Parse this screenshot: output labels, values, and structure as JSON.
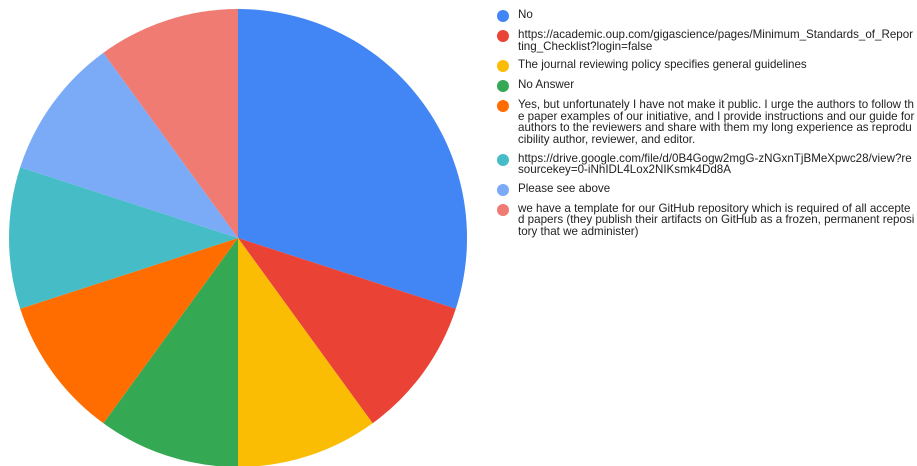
{
  "chart_data": {
    "type": "pie",
    "start_angle_deg": 0,
    "direction": "clockwise",
    "legend_position": "right",
    "slices": [
      {
        "label": "No",
        "value": 3,
        "color": "#4285f4"
      },
      {
        "label": "https://academic.oup.com/gigascience/pages/Minimum_Standards_of_Reporting_Checklist?login=false",
        "value": 1,
        "color": "#ea4335"
      },
      {
        "label": "The journal reviewing policy specifies general guidelines",
        "value": 1,
        "color": "#fbbc04"
      },
      {
        "label": "No Answer",
        "value": 1,
        "color": "#34a853"
      },
      {
        "label": "Yes, but unfortunately I have not make it public. I urge the authors to follow the paper examples of our initiative, and I provide instructions and our guide for authors to the reviewers and share with them my long experience as reproducibility author, reviewer, and editor.",
        "value": 1,
        "color": "#ff6d01"
      },
      {
        "label": "https://drive.google.com/file/d/0B4Gogw2mgG-zNGxnTjBMeXpwc28/view?resourcekey=0-iNhIDL4Lox2NIKsmk4Dd8A",
        "value": 1,
        "color": "#46bdc6"
      },
      {
        "label": "Please see above",
        "value": 1,
        "color": "#7baaf7"
      },
      {
        "label": "we have a template for our GitHub repository which is required of all accepted papers (they publish their artifacts on GitHub as a frozen, permanent repository that we administer)",
        "value": 1,
        "color": "#f07b72"
      }
    ]
  }
}
